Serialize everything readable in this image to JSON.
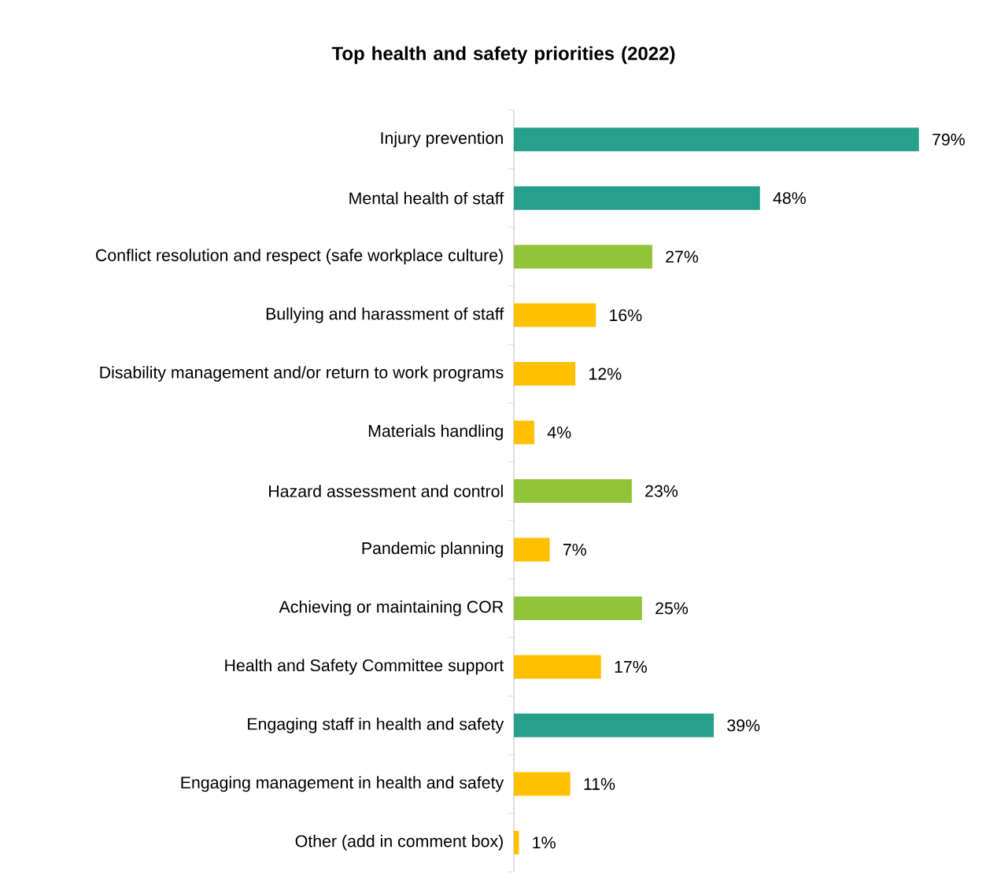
{
  "chart_data": {
    "type": "bar",
    "orientation": "horizontal",
    "title": "Top health and safety priorities (2022)",
    "categories": [
      "Injury prevention",
      "Mental health of staff",
      "Conflict resolution and respect (safe workplace culture)",
      "Bullying and harassment of staff",
      "Disability management and/or return to work programs",
      "Materials handling",
      "Hazard assessment and control",
      "Pandemic planning",
      "Achieving or maintaining COR",
      "Health and Safety Committee support",
      "Engaging staff in health and safety",
      "Engaging management in health and safety",
      "Other (add in comment box)"
    ],
    "values": [
      79,
      48,
      27,
      16,
      12,
      4,
      23,
      7,
      25,
      17,
      39,
      11,
      1
    ],
    "value_labels": [
      "79%",
      "48%",
      "27%",
      "16%",
      "12%",
      "4%",
      "23%",
      "7%",
      "25%",
      "17%",
      "39%",
      "11%",
      "1%"
    ],
    "colors": [
      "#26a08c",
      "#26a08c",
      "#92c43a",
      "#ffc000",
      "#ffc000",
      "#ffc000",
      "#92c43a",
      "#ffc000",
      "#92c43a",
      "#ffc000",
      "#26a08c",
      "#ffc000",
      "#ffc000"
    ],
    "data_labels": false
  }
}
